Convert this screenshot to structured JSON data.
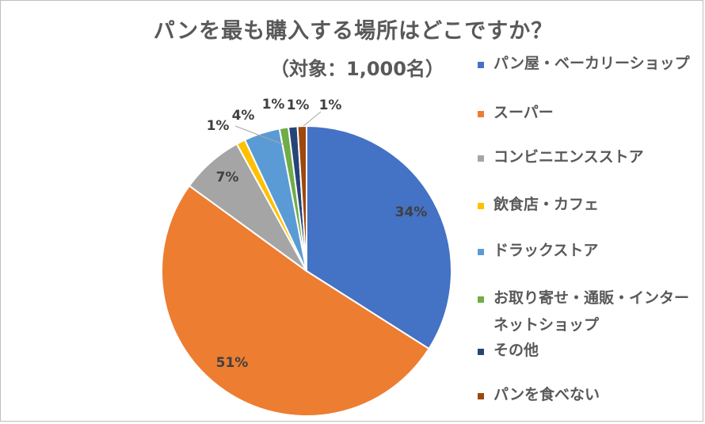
{
  "chart_data": {
    "type": "pie",
    "title": "パンを最も購入する場所はどこですか？",
    "subtitle": "（対象：1,000名）",
    "legend_position": "right",
    "categories": [
      "パン屋・ベーカリーショップ",
      "スーパー",
      "コンビニエンスストア",
      "飲食店・カフェ",
      "ドラックストア",
      "お取り寄せ・通販・インターネットショップ",
      "その他",
      "パンを食べない"
    ],
    "values": [
      34,
      51,
      7,
      1,
      4,
      1,
      1,
      1
    ],
    "data_labels": [
      "34%",
      "51%",
      "7%",
      "1%",
      "4%",
      "1%",
      "1%",
      "1%"
    ],
    "colors": [
      "#4472C4",
      "#ED7D31",
      "#A5A5A5",
      "#FFC000",
      "#5B9BD5",
      "#70AD47",
      "#264478",
      "#9E480E"
    ]
  }
}
